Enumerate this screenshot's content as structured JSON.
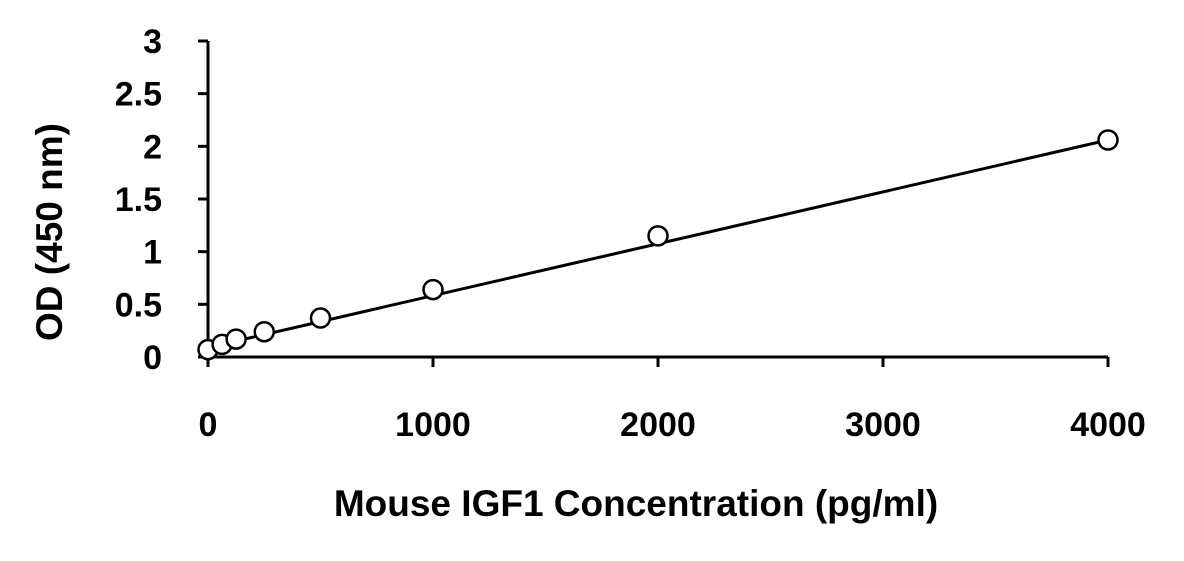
{
  "chart_data": {
    "type": "scatter",
    "title": "",
    "xlabel": "Mouse IGF1 Concentration (pg/ml)",
    "ylabel": "OD (450 nm)",
    "xlim": [
      0,
      4000
    ],
    "ylim": [
      0,
      3
    ],
    "x_ticks": [
      0,
      1000,
      2000,
      3000,
      4000
    ],
    "y_ticks": [
      0,
      0.5,
      1,
      1.5,
      2,
      2.5,
      3
    ],
    "y_tick_labels": [
      "0",
      "0.5",
      "1",
      "1.5",
      "2",
      "2.5",
      "3"
    ],
    "grid": false,
    "legend": "none",
    "series": [
      {
        "x": [
          0,
          62.5,
          125,
          250,
          500,
          1000,
          2000,
          4000
        ],
        "y": [
          0.07,
          0.12,
          0.17,
          0.24,
          0.37,
          0.64,
          1.15,
          2.06
        ]
      }
    ],
    "fit_line": {
      "x": [
        0,
        4000
      ],
      "y": [
        0.09,
        2.06
      ]
    },
    "colors": {
      "line": "#000000",
      "marker_fill": "#ffffff",
      "marker_stroke": "#000000"
    }
  }
}
